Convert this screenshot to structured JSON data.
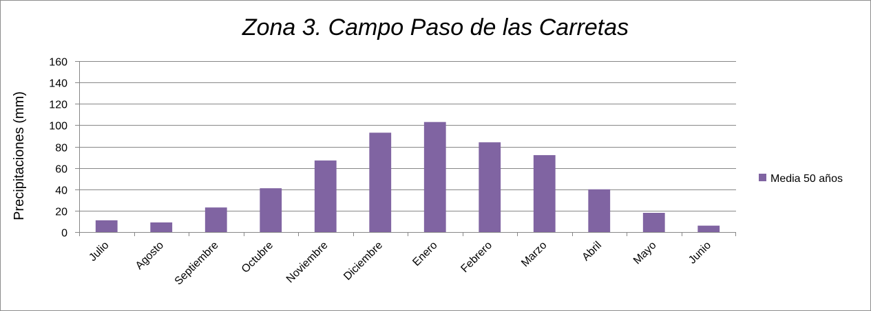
{
  "chart_data": {
    "type": "bar",
    "title": "Zona 3. Campo Paso de las Carretas",
    "xlabel": "",
    "ylabel": "Precipitaciones (mm)",
    "ylim": [
      0,
      160
    ],
    "yticks": [
      0,
      20,
      40,
      60,
      80,
      100,
      120,
      140,
      160
    ],
    "grid": true,
    "legend_position": "right",
    "categories": [
      "Julio",
      "Agosto",
      "Septiembre",
      "Octubre",
      "Noviembre",
      "Diciembre",
      "Enero",
      "Febrero",
      "Marzo",
      "Abril",
      "Mayo",
      "Junio"
    ],
    "series": [
      {
        "name": "Media 50 años",
        "color": "#8064a2",
        "values": [
          11,
          9,
          23,
          41,
          67,
          93,
          103,
          84,
          72,
          40,
          18,
          6
        ]
      }
    ]
  }
}
